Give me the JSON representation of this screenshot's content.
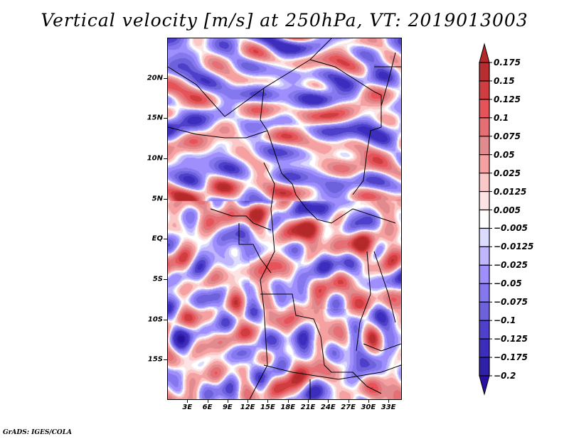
{
  "title": "Vertical velocity [m/s] at 250hPa, VT: 2019013003",
  "footer": "GrADS: IGES/COLA",
  "map": {
    "lon_range": [
      0,
      35
    ],
    "lat_range": [
      -20,
      25
    ],
    "y_axis": [
      {
        "label": "20N",
        "lat": 20
      },
      {
        "label": "15N",
        "lat": 15
      },
      {
        "label": "10N",
        "lat": 10
      },
      {
        "label": "5N",
        "lat": 5
      },
      {
        "label": "EQ",
        "lat": 0
      },
      {
        "label": "5S",
        "lat": -5
      },
      {
        "label": "10S",
        "lat": -10
      },
      {
        "label": "15S",
        "lat": -15
      }
    ],
    "x_axis": [
      {
        "label": "3E",
        "lon": 3
      },
      {
        "label": "6E",
        "lon": 6
      },
      {
        "label": "9E",
        "lon": 9
      },
      {
        "label": "12E",
        "lon": 12
      },
      {
        "label": "15E",
        "lon": 15
      },
      {
        "label": "18E",
        "lon": 18
      },
      {
        "label": "21E",
        "lon": 21
      },
      {
        "label": "24E",
        "lon": 24
      },
      {
        "label": "27E",
        "lon": 27
      },
      {
        "label": "30E",
        "lon": 30
      },
      {
        "label": "33E",
        "lon": 33
      }
    ]
  },
  "colorbar": {
    "units": "m/s",
    "labels": [
      "0.175",
      "0.15",
      "0.125",
      "0.1",
      "0.075",
      "0.05",
      "0.025",
      "0.0125",
      "0.005",
      "−0.005",
      "−0.0125",
      "−0.025",
      "−0.05",
      "−0.075",
      "−0.1",
      "−0.125",
      "−0.175",
      "−0.2"
    ],
    "colors": [
      "#b4282a",
      "#b82d2f",
      "#cf3d40",
      "#e65358",
      "#e56f74",
      "#e28b8e",
      "#f5a1a2",
      "#fbc8c8",
      "#fde5e5",
      "#ffffff",
      "#dcdcfe",
      "#c0b6fe",
      "#9e8ffd",
      "#8578ee",
      "#6e62dc",
      "#4e40cb",
      "#3c2dbd",
      "#2f20a8",
      "#2a0fa0"
    ]
  }
}
